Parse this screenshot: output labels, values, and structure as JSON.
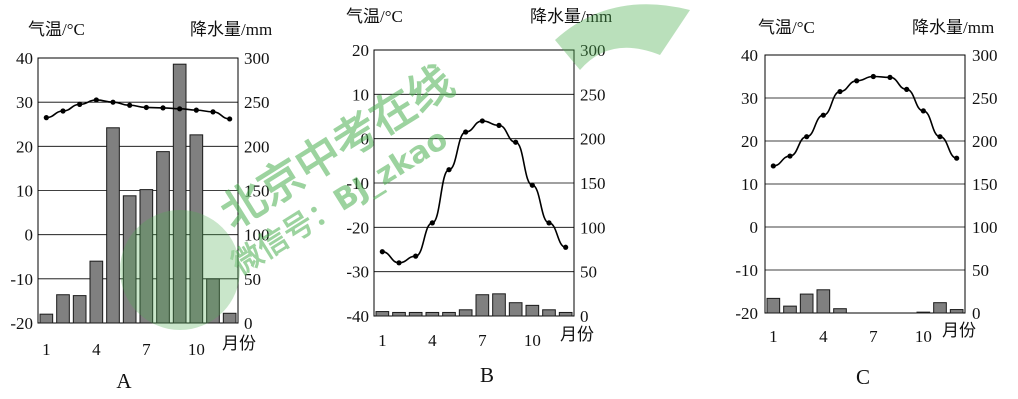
{
  "colors": {
    "bar_fill": "#808080",
    "bar_stroke": "#1a1a1a",
    "line": "#000000",
    "grid": "#000000",
    "watermark_green": "#4caf50"
  },
  "watermark": {
    "line1": "北京中考在线",
    "line2": "微信号：BJ_zkao"
  },
  "chart_data": [
    {
      "type": "bar+line",
      "label": "A",
      "left_axis_title": "气温/°C",
      "right_axis_title": "降水量/mm",
      "x_unit_label": "月份",
      "x_tick_labels": [
        "1",
        "4",
        "7",
        "10"
      ],
      "months": [
        1,
        2,
        3,
        4,
        5,
        6,
        7,
        8,
        9,
        10,
        11,
        12
      ],
      "temperature": [
        26.5,
        28,
        29.5,
        30.5,
        30,
        29.3,
        28.8,
        28.7,
        28.5,
        28.2,
        27.8,
        26.2
      ],
      "precipitation": [
        10,
        32,
        31,
        70,
        221,
        144,
        151,
        194,
        293,
        213,
        50,
        11
      ],
      "temp_ylim": [
        -20,
        40
      ],
      "temp_ticks": [
        "40",
        "30",
        "20",
        "10",
        "0",
        "-10",
        "-20"
      ],
      "precip_ylim": [
        0,
        300
      ],
      "precip_ticks": [
        "300",
        "250",
        "200",
        "150",
        "100",
        "50",
        "0"
      ],
      "grid": true
    },
    {
      "type": "bar+line",
      "label": "B",
      "left_axis_title": "气温/°C",
      "right_axis_title": "降水量/mm",
      "x_unit_label": "月份",
      "x_tick_labels": [
        "1",
        "4",
        "7",
        "10"
      ],
      "months": [
        1,
        2,
        3,
        4,
        5,
        6,
        7,
        8,
        9,
        10,
        11,
        12
      ],
      "temperature": [
        -25.5,
        -28,
        -26.5,
        -19,
        -7,
        1.5,
        4,
        3,
        -0.8,
        -10.5,
        -19,
        -24.5
      ],
      "precipitation": [
        5,
        4,
        4,
        4,
        4,
        7,
        24,
        25,
        15,
        12,
        7,
        4
      ],
      "temp_ylim": [
        -40,
        20
      ],
      "temp_ticks": [
        "20",
        "10",
        "0",
        "-10",
        "-20",
        "-30",
        "-40"
      ],
      "precip_ylim": [
        0,
        300
      ],
      "precip_ticks": [
        "300",
        "250",
        "200",
        "150",
        "100",
        "50",
        "0"
      ],
      "grid": true
    },
    {
      "type": "bar+line",
      "label": "C",
      "left_axis_title": "气温/°C",
      "right_axis_title": "降水量/mm",
      "x_unit_label": "月份",
      "x_tick_labels": [
        "1",
        "4",
        "7",
        "10"
      ],
      "months": [
        1,
        2,
        3,
        4,
        5,
        6,
        7,
        8,
        9,
        10,
        11,
        12
      ],
      "temperature": [
        14.2,
        16.5,
        21,
        26,
        31.5,
        34,
        35,
        34.8,
        32,
        27,
        21,
        16
      ],
      "precipitation": [
        17,
        8,
        22,
        27,
        5,
        0,
        0,
        0,
        0,
        1,
        12,
        4
      ],
      "temp_ylim": [
        -20,
        40
      ],
      "temp_ticks": [
        "40",
        "30",
        "20",
        "10",
        "0",
        "-10",
        "-20"
      ],
      "precip_ylim": [
        0,
        300
      ],
      "precip_ticks": [
        "300",
        "250",
        "200",
        "150",
        "100",
        "50",
        "0"
      ],
      "grid": true
    }
  ]
}
